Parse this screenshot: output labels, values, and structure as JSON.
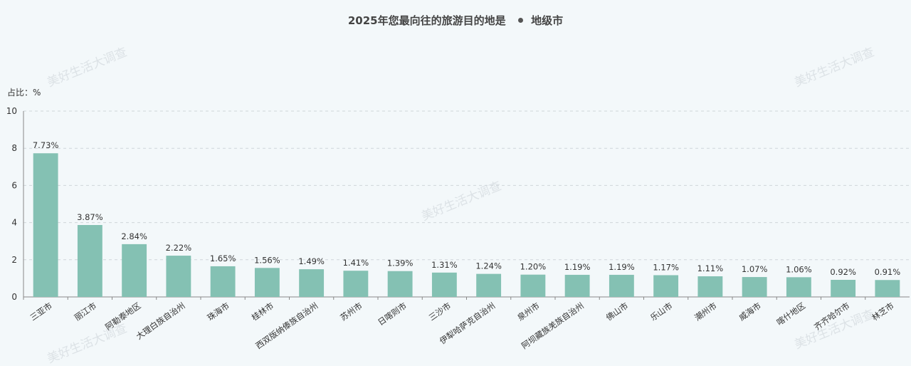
{
  "title": "2025年您最向往的旅游目的地是",
  "legend": "地级市",
  "unit_label": "占比：%",
  "watermark": "美好生活大调查",
  "colors": {
    "bar": "#84c1b3",
    "axis": "#888888",
    "grid": "#cfd6da",
    "legend_dot": "#555555"
  },
  "chart_data": {
    "type": "bar",
    "title": "2025年您最向往的旅游目的地是",
    "ylabel": "占比：%",
    "ylim": [
      0,
      10
    ],
    "yticks": [
      0,
      2,
      4,
      6,
      8,
      10
    ],
    "grid": true,
    "legend": "top-center",
    "categories": [
      "三亚市",
      "丽江市",
      "阿勒泰地区",
      "大理白族自治州",
      "珠海市",
      "桂林市",
      "西双版纳傣族自治州",
      "苏州市",
      "日喀则市",
      "三沙市",
      "伊犁哈萨克自治州",
      "泉州市",
      "阿坝藏族羌族自治州",
      "佛山市",
      "乐山市",
      "潮州市",
      "威海市",
      "喀什地区",
      "齐齐哈尔市",
      "林芝市"
    ],
    "values": [
      7.73,
      3.87,
      2.84,
      2.22,
      1.65,
      1.56,
      1.49,
      1.41,
      1.39,
      1.31,
      1.24,
      1.2,
      1.19,
      1.19,
      1.17,
      1.11,
      1.07,
      1.06,
      0.92,
      0.91
    ],
    "data_labels": [
      "7.73%",
      "3.87%",
      "2.84%",
      "2.22%",
      "1.65%",
      "1.56%",
      "1.49%",
      "1.41%",
      "1.39%",
      "1.31%",
      "1.24%",
      "1.20%",
      "1.19%",
      "1.19%",
      "1.17%",
      "1.11%",
      "1.07%",
      "1.06%",
      "0.92%",
      "0.91%"
    ]
  }
}
